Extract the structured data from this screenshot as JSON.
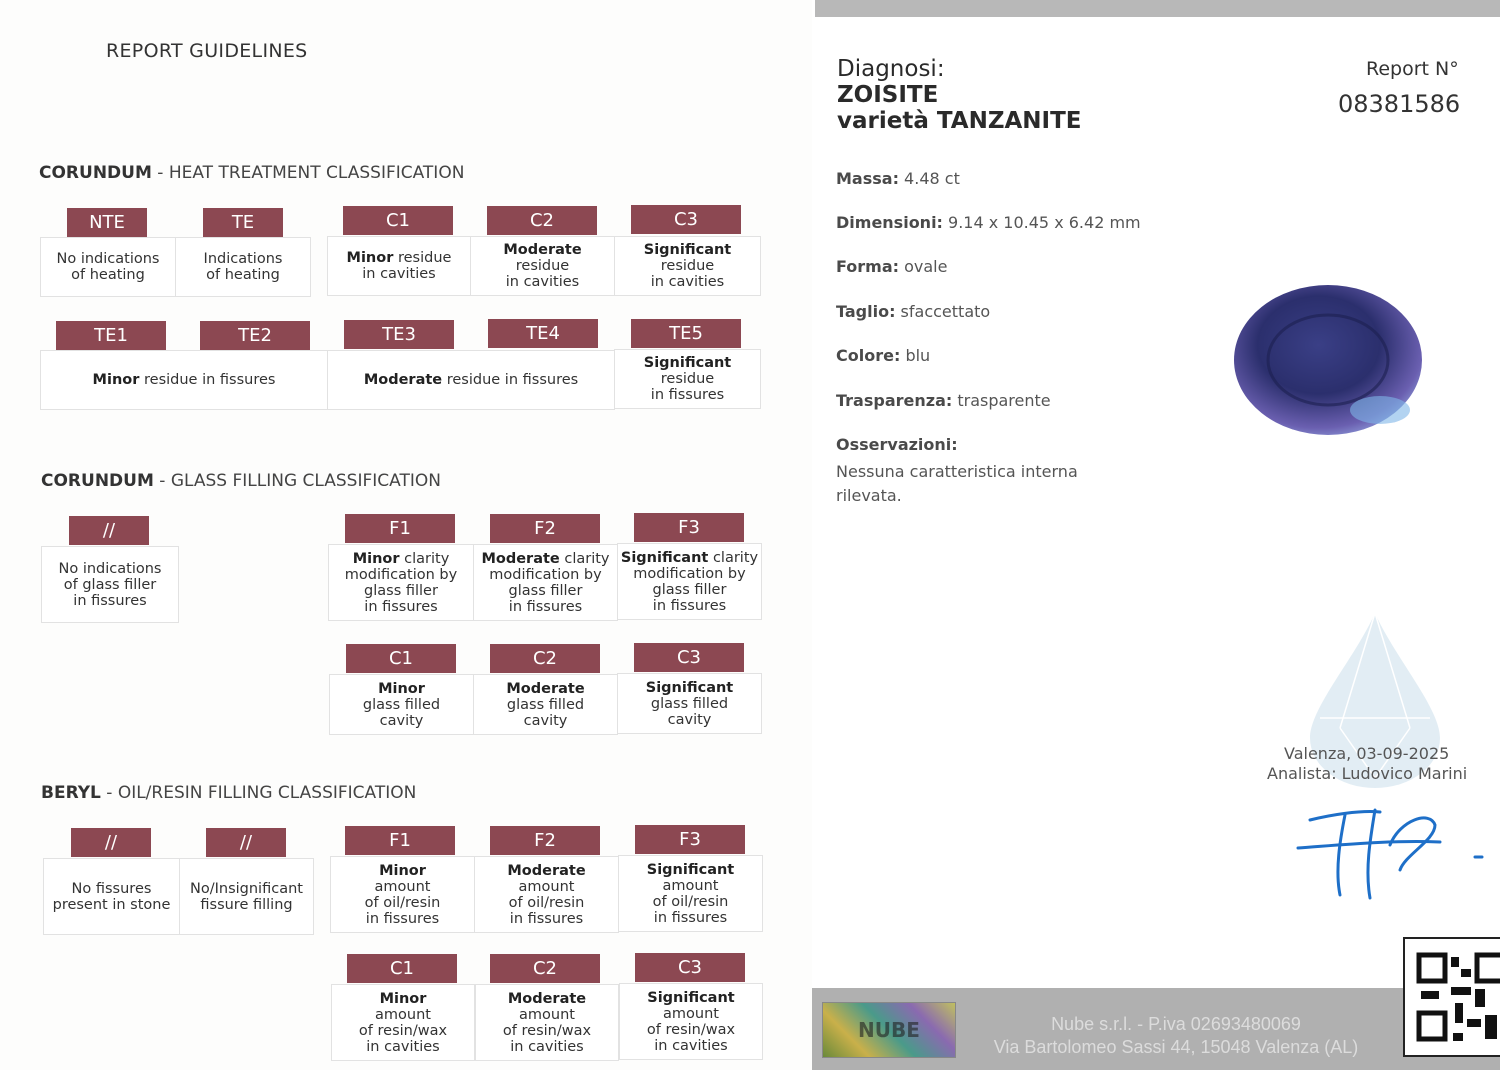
{
  "left": {
    "title": "REPORT GUIDELINES",
    "sections": [
      {
        "bold": "CORUNDUM",
        "rest": " - HEAT TREATMENT CLASSIFICATION"
      },
      {
        "bold": "CORUNDUM",
        "rest": " - GLASS FILLING CLASSIFICATION"
      },
      {
        "bold": "BERYL",
        "rest": " - OIL/RESIN FILLING CLASSIFICATION"
      }
    ],
    "tags": [
      "NTE",
      "TE",
      "C1",
      "C2",
      "C3",
      "TE1",
      "TE2",
      "TE3",
      "TE4",
      "TE5",
      "//",
      "F1",
      "F2",
      "F3",
      "C1",
      "C2",
      "C3",
      "//",
      "//",
      "F1",
      "F2",
      "F3",
      "C1",
      "C2",
      "C3"
    ],
    "boxes": [
      {
        "b": "",
        "r": "No indications\nof heating"
      },
      {
        "b": "",
        "r": "Indications\nof heating"
      },
      {
        "b": "Minor",
        "r": " residue\nin cavities"
      },
      {
        "b": "Moderate",
        "r": "\nresidue\nin cavities"
      },
      {
        "b": "Significant",
        "r": "\nresidue\nin cavities"
      },
      {
        "b": "Minor",
        "r": " residue in fissures"
      },
      {
        "b": "Moderate",
        "r": " residue in fissures"
      },
      {
        "b": "Significant",
        "r": "\nresidue\nin fissures"
      },
      {
        "b": "",
        "r": "No indications\nof glass filler\nin fissures"
      },
      {
        "b": "Minor",
        "r": " clarity\nmodification by\nglass filler\nin fissures"
      },
      {
        "b": "Moderate",
        "r": " clarity\nmodification by\nglass filler\nin fissures"
      },
      {
        "b": "Significant",
        "r": " clarity\nmodification by\nglass filler\nin fissures"
      },
      {
        "b": "Minor",
        "r": "\nglass filled\ncavity"
      },
      {
        "b": "Moderate",
        "r": "\nglass filled\ncavity"
      },
      {
        "b": "Significant",
        "r": "\nglass filled\ncavity"
      },
      {
        "b": "",
        "r": "No fissures\npresent in stone"
      },
      {
        "b": "",
        "r": "No/Insignificant\nfissure filling"
      },
      {
        "b": "Minor",
        "r": "\namount\nof oil/resin\nin fissures"
      },
      {
        "b": "Moderate",
        "r": "\namount\nof oil/resin\nin fissures"
      },
      {
        "b": "Significant",
        "r": "\namount\nof oil/resin\nin fissures"
      },
      {
        "b": "Minor",
        "r": "\namount\nof resin/wax\nin cavities"
      },
      {
        "b": "Moderate",
        "r": "\namount\nof resin/wax\nin cavities"
      },
      {
        "b": "Significant",
        "r": "\namount\nof resin/wax\nin cavities"
      }
    ]
  },
  "right": {
    "diagnosis_label": "Diagnosi:",
    "species": "ZOISITE",
    "variety": "varietà TANZANITE",
    "report_label": "Report N°",
    "report_number": "08381586",
    "fields": [
      {
        "label": "Massa:",
        "value": " 4.48 ct"
      },
      {
        "label": "Dimensioni:",
        "value": " 9.14 x 10.45 x 6.42 mm"
      },
      {
        "label": "Forma:",
        "value": " ovale"
      },
      {
        "label": "Taglio:",
        "value": " sfaccettato"
      },
      {
        "label": "Colore:",
        "value": " blu"
      },
      {
        "label": "Trasparenza:",
        "value": " trasparente"
      }
    ],
    "observations_label": "Osservazioni:",
    "observations": "Nessuna caratteristica interna\nrilevata.",
    "place_date": "Valenza, 03-09-2025",
    "analyst": "Analista: Ludovico Marini",
    "footer_line1": "Nube s.r.l. - P.iva 02693480069",
    "footer_line2": "Via Bartolomeo Sassi 44, 15048 Valenza (AL)",
    "hologram_text": "NUBE",
    "colors": {
      "tag": "#8c4852",
      "footer": "#b0b0b0",
      "signature": "#1e6fc8"
    }
  }
}
